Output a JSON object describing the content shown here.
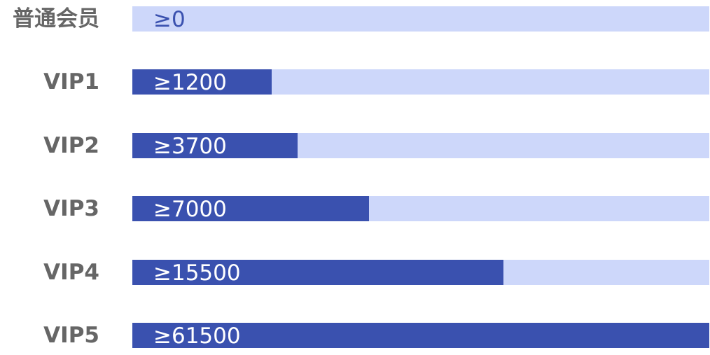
{
  "chart_data": {
    "type": "bar",
    "orientation": "horizontal",
    "categories": [
      "普通会员",
      "VIP1",
      "VIP2",
      "VIP3",
      "VIP4",
      "VIP5"
    ],
    "values": [
      0,
      1200,
      3700,
      7000,
      15500,
      61500
    ],
    "value_labels": [
      "≥0",
      "≥1200",
      "≥3700",
      "≥7000",
      "≥15500",
      "≥61500"
    ],
    "fill_fractions": [
      0,
      0.242,
      0.287,
      0.41,
      0.643,
      1.0
    ],
    "title": "",
    "xlabel": "",
    "ylabel": "",
    "grid": false,
    "legend": "none",
    "colors": {
      "track": "#CDD7FA",
      "fill": "#3A51AF",
      "category_text": "#666666",
      "label_on_fill": "#FFFFFF",
      "label_on_track": "#3A51AF"
    }
  }
}
